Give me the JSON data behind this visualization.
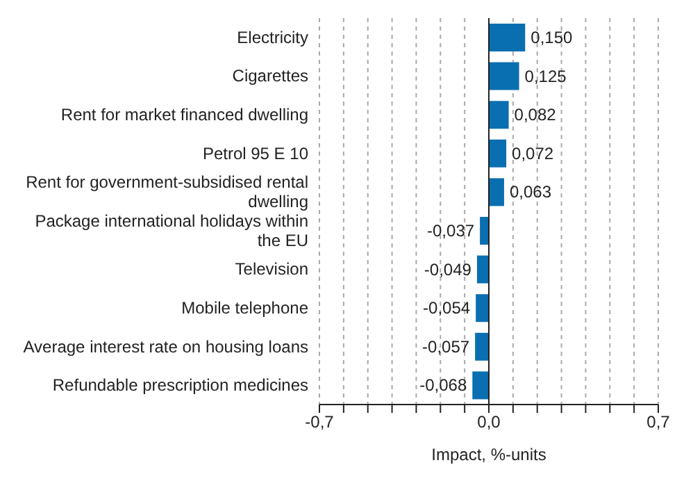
{
  "chart_data": {
    "type": "bar",
    "orientation": "horizontal",
    "xlabel": "Impact, %-units",
    "categories": [
      "Electricity",
      "Cigarettes",
      "Rent for market financed dwelling",
      "Petrol 95 E 10",
      "Rent for government-subsidised rental dwelling",
      "Package international holidays within the EU",
      "Television",
      "Mobile telephone",
      "Average interest rate on housing loans",
      "Refundable prescription medicines"
    ],
    "values": [
      0.15,
      0.125,
      0.082,
      0.072,
      0.063,
      -0.037,
      -0.049,
      -0.054,
      -0.057,
      -0.068
    ],
    "value_labels": [
      "0,150",
      "0,125",
      "0,082",
      "0,072",
      "0,063",
      "-0,037",
      "-0,049",
      "-0,054",
      "-0,057",
      "-0,068"
    ],
    "color": "#0a6fb0",
    "xlim": [
      -0.7,
      0.7
    ],
    "xticks": [
      {
        "value": -0.7,
        "label": "-0,7"
      },
      {
        "value": -0.6,
        "label": null
      },
      {
        "value": -0.5,
        "label": null
      },
      {
        "value": -0.4,
        "label": null
      },
      {
        "value": -0.3,
        "label": null
      },
      {
        "value": -0.2,
        "label": null
      },
      {
        "value": -0.1,
        "label": null
      },
      {
        "value": 0,
        "label": "0,0"
      },
      {
        "value": 0.1,
        "label": null
      },
      {
        "value": 0.2,
        "label": null
      },
      {
        "value": 0.3,
        "label": null
      },
      {
        "value": 0.4,
        "label": null
      },
      {
        "value": 0.5,
        "label": null
      },
      {
        "value": 0.6,
        "label": null
      },
      {
        "value": 0.7,
        "label": "0,7"
      }
    ],
    "grid": "x",
    "legend": false
  }
}
